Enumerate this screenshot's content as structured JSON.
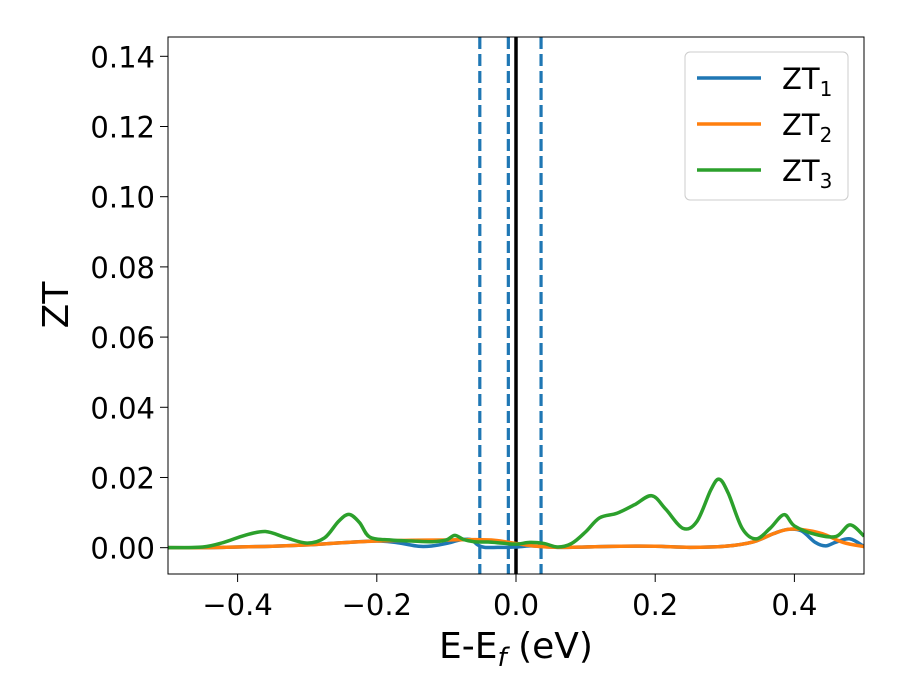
{
  "chart_data": {
    "type": "line",
    "xlabel": "E-E",
    "xlabel_sub": "f",
    "xlabel_unit": "(eV)",
    "ylabel": "ZT",
    "xlim": [
      -0.5,
      0.5
    ],
    "ylim": [
      -0.0075,
      0.1455
    ],
    "x_ticks": [
      -0.4,
      -0.2,
      0.0,
      0.2,
      0.4
    ],
    "x_tick_labels": [
      "−0.4",
      "−0.2",
      "0.0",
      "0.2",
      "0.4"
    ],
    "y_ticks": [
      0.0,
      0.02,
      0.04,
      0.06,
      0.08,
      0.1,
      0.12,
      0.14
    ],
    "y_tick_labels": [
      "0.00",
      "0.02",
      "0.04",
      "0.06",
      "0.08",
      "0.10",
      "0.12",
      "0.14"
    ],
    "grid": false,
    "legend_position": "top-right",
    "vlines": [
      {
        "x": -0.052,
        "style": "dashed",
        "color": "#1f77b4"
      },
      {
        "x": -0.011,
        "style": "dashed",
        "color": "#1f77b4"
      },
      {
        "x": 0.036,
        "style": "dashed",
        "color": "#1f77b4"
      },
      {
        "x": 0.0,
        "style": "solid",
        "color": "#000000"
      }
    ],
    "series": [
      {
        "name": "ZT",
        "sub": "1",
        "color": "#1f77b4",
        "points": [
          [
            -0.5,
            0.0
          ],
          [
            -0.45,
            0.0
          ],
          [
            -0.4,
            0.0002
          ],
          [
            -0.35,
            0.0004
          ],
          [
            -0.3,
            0.0008
          ],
          [
            -0.25,
            0.0014
          ],
          [
            -0.2,
            0.0019
          ],
          [
            -0.17,
            0.0014
          ],
          [
            -0.14,
            0.0004
          ],
          [
            -0.12,
            0.0005
          ],
          [
            -0.1,
            0.0012
          ],
          [
            -0.08,
            0.0022
          ],
          [
            -0.065,
            0.0023
          ],
          [
            -0.055,
            0.0008
          ],
          [
            -0.045,
            0.0001
          ],
          [
            -0.02,
            0.0001
          ],
          [
            0.0,
            0.0002
          ],
          [
            0.02,
            0.0005
          ],
          [
            0.04,
            0.0003
          ],
          [
            0.06,
            0.0001
          ],
          [
            0.1,
            0.0002
          ],
          [
            0.15,
            0.0004
          ],
          [
            0.2,
            0.0004
          ],
          [
            0.25,
            0.0001
          ],
          [
            0.3,
            0.0004
          ],
          [
            0.34,
            0.0016
          ],
          [
            0.37,
            0.004
          ],
          [
            0.39,
            0.0052
          ],
          [
            0.41,
            0.0048
          ],
          [
            0.43,
            0.0015
          ],
          [
            0.445,
            0.0005
          ],
          [
            0.46,
            0.0016
          ],
          [
            0.48,
            0.0025
          ],
          [
            0.5,
            0.0003
          ]
        ]
      },
      {
        "name": "ZT",
        "sub": "2",
        "color": "#ff7f0e",
        "points": [
          [
            -0.5,
            0.0
          ],
          [
            -0.45,
            0.0
          ],
          [
            -0.4,
            0.0002
          ],
          [
            -0.35,
            0.0004
          ],
          [
            -0.3,
            0.0008
          ],
          [
            -0.25,
            0.0014
          ],
          [
            -0.2,
            0.0019
          ],
          [
            -0.15,
            0.0021
          ],
          [
            -0.1,
            0.0022
          ],
          [
            -0.06,
            0.0023
          ],
          [
            -0.03,
            0.0021
          ],
          [
            0.0,
            0.0012
          ],
          [
            0.03,
            0.0004
          ],
          [
            0.06,
            0.0001
          ],
          [
            0.1,
            0.0002
          ],
          [
            0.15,
            0.0004
          ],
          [
            0.2,
            0.0004
          ],
          [
            0.25,
            0.0001
          ],
          [
            0.3,
            0.0004
          ],
          [
            0.34,
            0.0016
          ],
          [
            0.37,
            0.004
          ],
          [
            0.39,
            0.0052
          ],
          [
            0.41,
            0.0052
          ],
          [
            0.44,
            0.004
          ],
          [
            0.47,
            0.0015
          ],
          [
            0.5,
            0.0003
          ]
        ]
      },
      {
        "name": "ZT",
        "sub": "3",
        "color": "#2ca02c",
        "points": [
          [
            -0.5,
            0.0
          ],
          [
            -0.45,
            0.0002
          ],
          [
            -0.42,
            0.0015
          ],
          [
            -0.39,
            0.0035
          ],
          [
            -0.36,
            0.0046
          ],
          [
            -0.33,
            0.0028
          ],
          [
            -0.3,
            0.0013
          ],
          [
            -0.275,
            0.0028
          ],
          [
            -0.255,
            0.0075
          ],
          [
            -0.24,
            0.0095
          ],
          [
            -0.225,
            0.0072
          ],
          [
            -0.21,
            0.003
          ],
          [
            -0.18,
            0.0022
          ],
          [
            -0.15,
            0.0019
          ],
          [
            -0.12,
            0.0017
          ],
          [
            -0.1,
            0.0022
          ],
          [
            -0.088,
            0.0035
          ],
          [
            -0.075,
            0.0023
          ],
          [
            -0.06,
            0.0017
          ],
          [
            -0.04,
            0.0016
          ],
          [
            -0.02,
            0.0013
          ],
          [
            0.0,
            0.001
          ],
          [
            0.02,
            0.0015
          ],
          [
            0.04,
            0.0012
          ],
          [
            0.06,
            0.0002
          ],
          [
            0.08,
            0.0012
          ],
          [
            0.1,
            0.0045
          ],
          [
            0.12,
            0.0085
          ],
          [
            0.145,
            0.0098
          ],
          [
            0.17,
            0.0122
          ],
          [
            0.195,
            0.0148
          ],
          [
            0.215,
            0.011
          ],
          [
            0.24,
            0.0055
          ],
          [
            0.26,
            0.0075
          ],
          [
            0.28,
            0.0165
          ],
          [
            0.292,
            0.0195
          ],
          [
            0.305,
            0.0155
          ],
          [
            0.325,
            0.0055
          ],
          [
            0.345,
            0.0025
          ],
          [
            0.365,
            0.0055
          ],
          [
            0.385,
            0.0094
          ],
          [
            0.4,
            0.0062
          ],
          [
            0.43,
            0.0038
          ],
          [
            0.46,
            0.0032
          ],
          [
            0.48,
            0.0065
          ],
          [
            0.5,
            0.0033
          ]
        ]
      }
    ]
  }
}
